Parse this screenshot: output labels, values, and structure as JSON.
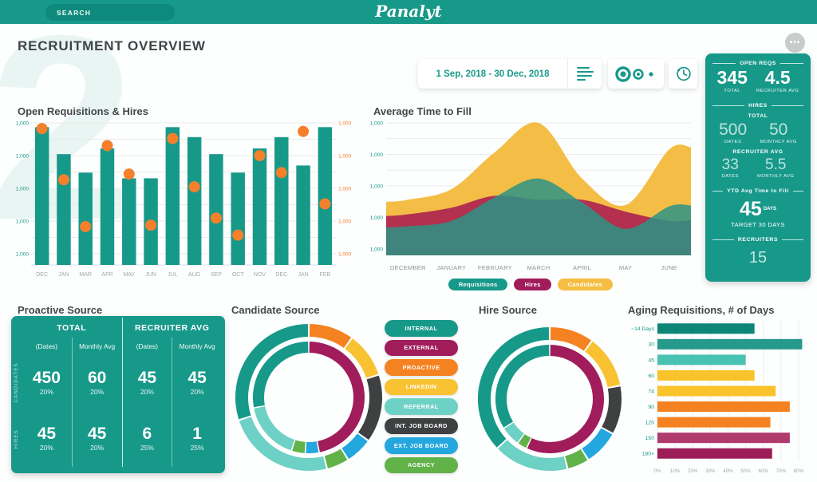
{
  "topbar": {
    "search_placeholder": "SEARCH",
    "logo": "Panalyt"
  },
  "page": {
    "title": "RECRUITMENT OVERVIEW",
    "watermark": "2"
  },
  "controls": {
    "date_range": "1 Sep, 2018 - 30 Dec, 2018",
    "more_label": "•••"
  },
  "colors": {
    "teal": "#17998a",
    "teal_dark": "#0d8a7b",
    "orange": "#f4802b",
    "maroon": "#a01c5b",
    "yellow": "#f5bd41",
    "light_teal": "#6ed1c5",
    "charcoal": "#3f4042",
    "blue": "#23a7de",
    "green": "#62b24a",
    "grid": "#e9eaea",
    "axis_text": "#a3a7aa",
    "title_text": "#3f4447"
  },
  "chart_data": [
    {
      "id": "open_reqs_hires",
      "type": "bar",
      "title": "Open Requisitions & Hires",
      "categories": [
        "DEC",
        "JAN",
        "MAR",
        "APR",
        "MAY",
        "JUN",
        "JUL",
        "AUG",
        "SEP",
        "OCT",
        "NOV",
        "DEC",
        "JAN",
        "FEB"
      ],
      "series": [
        {
          "name": "Requisitions",
          "render": "bar",
          "color": "#17998a",
          "values": [
            97,
            78,
            65,
            82,
            61,
            61,
            97,
            90,
            78,
            65,
            82,
            90,
            70,
            97
          ]
        },
        {
          "name": "Hires",
          "render": "point",
          "color": "#f4802b",
          "values": [
            96,
            60,
            27,
            84,
            64,
            28,
            89,
            55,
            33,
            21,
            77,
            65,
            94,
            43
          ]
        }
      ],
      "ylim": [
        0,
        100
      ],
      "y_ticks_left": [
        "1,000",
        "1,000",
        "1,000",
        "1,000",
        "1,000"
      ],
      "y_ticks_right": [
        "1,000",
        "1,000",
        "1,000",
        "1,000",
        "1,000"
      ],
      "grid": true
    },
    {
      "id": "avg_time_to_fill",
      "type": "area",
      "title": "Average Time to Fill",
      "x": [
        "DECEMBER",
        "JANUARY",
        "FEBRUARY",
        "MARCH",
        "APRIL",
        "MAY",
        "JUNE"
      ],
      "series": [
        {
          "name": "Candidates",
          "color": "#f4bd45",
          "opacity": 1,
          "values": [
            42,
            50,
            78,
            100,
            58,
            38,
            80
          ]
        },
        {
          "name": "Hires",
          "color": "#ac2050",
          "opacity": 0.9,
          "values": [
            31,
            36,
            45,
            42,
            42,
            33,
            26
          ]
        },
        {
          "name": "Requisitions",
          "color": "#2b9485",
          "opacity": 0.85,
          "values": [
            22,
            26,
            44,
            58,
            40,
            20,
            37
          ]
        }
      ],
      "legend": [
        {
          "label": "Requisitions",
          "color": "#17998a"
        },
        {
          "label": "Hires",
          "color": "#a01c5b"
        },
        {
          "label": "Candidates",
          "color": "#f5bd41"
        }
      ],
      "ylim": [
        0,
        100
      ],
      "y_ticks": [
        "1,000",
        "1,000",
        "1,000",
        "1,000",
        "1,000"
      ],
      "grid": true
    },
    {
      "id": "candidate_source",
      "type": "pie",
      "title": "Candidate Source",
      "outer_ring": [
        {
          "label": "PROACTIVE",
          "color": "#f58220",
          "value": 10
        },
        {
          "label": "LINKEDIN",
          "color": "#f9c233",
          "value": 10
        },
        {
          "label": "INT. JOB BOARD",
          "color": "#3f4042",
          "value": 15
        },
        {
          "label": "EXT. JOB BOARD",
          "color": "#23a7de",
          "value": 6
        },
        {
          "label": "AGENCY",
          "color": "#62b24a",
          "value": 5
        },
        {
          "label": "REFERRAL",
          "color": "#6ed1c5",
          "value": 24
        },
        {
          "label": "INTERNAL",
          "color": "#17998a",
          "value": 30
        }
      ],
      "inner_ring": [
        {
          "label": "EXTERNAL",
          "color": "#a01c5b",
          "value": 47
        },
        {
          "label": "EXT. JOB BOARD",
          "color": "#23a7de",
          "value": 4
        },
        {
          "label": "AGENCY",
          "color": "#62b24a",
          "value": 4
        },
        {
          "label": "REFERRAL",
          "color": "#6ed1c5",
          "value": 17
        },
        {
          "label": "INTERNAL",
          "color": "#17998a",
          "value": 28
        }
      ]
    },
    {
      "id": "hire_source",
      "type": "pie",
      "title": "Hire Source",
      "outer_ring": [
        {
          "label": "PROACTIVE",
          "color": "#f58220",
          "value": 10
        },
        {
          "label": "LINKEDIN",
          "color": "#f9c233",
          "value": 12
        },
        {
          "label": "INT. JOB BOARD",
          "color": "#3f4042",
          "value": 11
        },
        {
          "label": "EXT. JOB BOARD",
          "color": "#23a7de",
          "value": 8
        },
        {
          "label": "AGENCY",
          "color": "#62b24a",
          "value": 5
        },
        {
          "label": "REFERRAL",
          "color": "#6ed1c5",
          "value": 17
        },
        {
          "label": "INTERNAL",
          "color": "#17998a",
          "value": 37
        }
      ],
      "inner_ring": [
        {
          "label": "EXTERNAL",
          "color": "#a01c5b",
          "value": 57
        },
        {
          "label": "AGENCY",
          "color": "#62b24a",
          "value": 3
        },
        {
          "label": "REFERRAL",
          "color": "#6ed1c5",
          "value": 6
        },
        {
          "label": "INTERNAL",
          "color": "#17998a",
          "value": 34
        }
      ]
    },
    {
      "id": "aging_requisitions",
      "type": "bar",
      "title": "Aging Requisitions, # of Days",
      "orientation": "horizontal",
      "categories": [
        "~14 Days",
        "30",
        "45",
        "60",
        "74",
        "90",
        "120",
        "150",
        "180+"
      ],
      "values": [
        55,
        82,
        50,
        55,
        67,
        75,
        64,
        75,
        65
      ],
      "bar_colors": [
        "#0d8678",
        "#27998b",
        "#49c2b1",
        "#f9c32c",
        "#f9c32c",
        "#f58220",
        "#f58220",
        "#ae3a6e",
        "#9c1d57"
      ],
      "x_ticks": [
        "0%",
        "10%",
        "20%",
        "30%",
        "40%",
        "50%",
        "60%",
        "70%",
        "80%"
      ],
      "xlim": [
        0,
        85
      ],
      "grid": true
    }
  ],
  "source_legend": {
    "items": [
      {
        "label": "INTERNAL",
        "color": "#17998a"
      },
      {
        "label": "EXTERNAL",
        "color": "#a01c5b"
      },
      {
        "label": "PROACTIVE",
        "color": "#f58220"
      },
      {
        "label": "LINKEDIN",
        "color": "#f9c233"
      },
      {
        "label": "REFERRAL",
        "color": "#6ed1c5"
      },
      {
        "label": "INT. JOB BOARD",
        "color": "#3f4042"
      },
      {
        "label": "EXT. JOB BOARD",
        "color": "#23a7de"
      },
      {
        "label": "AGENCY",
        "color": "#62b24a"
      }
    ]
  },
  "proactive_table": {
    "title": "Proactive Source",
    "col_groups": [
      "TOTAL",
      "RECRUITER AVG"
    ],
    "sub_headers": [
      "(Dates)",
      "Monthly Avg",
      "(Dates)",
      "Monthly Avg"
    ],
    "rows": [
      {
        "label": "CANDIDATES",
        "cells": [
          {
            "value": "450",
            "pct": "20%"
          },
          {
            "value": "60",
            "pct": "20%"
          },
          {
            "value": "45",
            "pct": "20%"
          },
          {
            "value": "45",
            "pct": "20%"
          }
        ]
      },
      {
        "label": "HIRES",
        "cells": [
          {
            "value": "45",
            "pct": "20%"
          },
          {
            "value": "45",
            "pct": "20%"
          },
          {
            "value": "6",
            "pct": "25%"
          },
          {
            "value": "1",
            "pct": "25%"
          }
        ]
      }
    ]
  },
  "stat_panel": {
    "open_reqs_header": "OPEN REQS",
    "open_reqs_total": "345",
    "open_reqs_total_label": "TOTAL",
    "open_reqs_avg": "4.5",
    "open_reqs_avg_label": "RECRUITER AVG",
    "hires_header": "HIRES",
    "hires_total_title": "TOTAL",
    "hires_total_dates": "500",
    "hires_total_dates_label": "DATES",
    "hires_total_monthly": "50",
    "hires_total_monthly_label": "MONTHLY AVG",
    "hires_recruiter_title": "RECRUITER AVG",
    "hires_recruiter_dates": "33",
    "hires_recruiter_dates_label": "DATES",
    "hires_recruiter_monthly": "5.5",
    "hires_recruiter_monthly_label": "MONTHLY AVG",
    "ytd_header": "YTD Avg Time to Fill",
    "ytd_value": "45",
    "ytd_unit": "DAYS",
    "ytd_target": "TARGET 30 DAYS",
    "recruiters_header": "RECRUITERS",
    "recruiters_value": "15"
  }
}
